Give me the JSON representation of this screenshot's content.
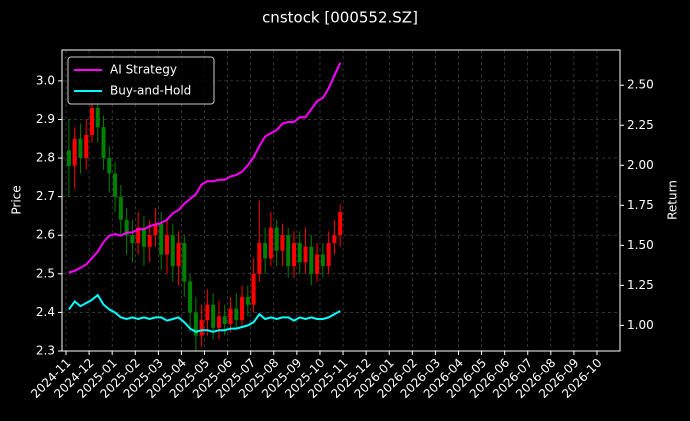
{
  "chart_data": {
    "type": "candlestick",
    "title": "cnstock [000552.SZ]",
    "ylabel": "Price",
    "y2label": "Return",
    "x": [
      "2024-11",
      "2024-11",
      "2024-11",
      "2024-11",
      "2024-12",
      "2024-12",
      "2024-12",
      "2024-12",
      "2025-01",
      "2025-01",
      "2025-01",
      "2025-01",
      "2025-02",
      "2025-02",
      "2025-02",
      "2025-02",
      "2025-03",
      "2025-03",
      "2025-03",
      "2025-03",
      "2025-04",
      "2025-04",
      "2025-04",
      "2025-04",
      "2025-05",
      "2025-05",
      "2025-05",
      "2025-05",
      "2025-06",
      "2025-06",
      "2025-06",
      "2025-06",
      "2025-07",
      "2025-07",
      "2025-07",
      "2025-07",
      "2025-08",
      "2025-08",
      "2025-08",
      "2025-08",
      "2025-09",
      "2025-09",
      "2025-09",
      "2025-09",
      "2025-10",
      "2025-10",
      "2025-10",
      "2025-10"
    ],
    "open": [
      2.82,
      2.78,
      2.85,
      2.8,
      2.86,
      2.93,
      2.88,
      2.8,
      2.76,
      2.7,
      2.64,
      2.6,
      2.58,
      2.62,
      2.57,
      2.6,
      2.63,
      2.55,
      2.6,
      2.52,
      2.58,
      2.48,
      2.4,
      2.34,
      2.38,
      2.42,
      2.36,
      2.39,
      2.37,
      2.41,
      2.38,
      2.44,
      2.42,
      2.5,
      2.58,
      2.54,
      2.62,
      2.56,
      2.6,
      2.52,
      2.58,
      2.53,
      2.57,
      2.5,
      2.55,
      2.52,
      2.58,
      2.6
    ],
    "high": [
      2.9,
      2.88,
      2.89,
      2.9,
      2.98,
      2.96,
      2.91,
      2.83,
      2.79,
      2.73,
      2.67,
      2.64,
      2.66,
      2.65,
      2.64,
      2.67,
      2.66,
      2.64,
      2.63,
      2.61,
      2.6,
      2.5,
      2.44,
      2.42,
      2.46,
      2.45,
      2.43,
      2.42,
      2.44,
      2.45,
      2.47,
      2.47,
      2.54,
      2.69,
      2.62,
      2.66,
      2.64,
      2.63,
      2.62,
      2.61,
      2.61,
      2.62,
      2.6,
      2.58,
      2.58,
      2.61,
      2.64,
      2.68
    ],
    "low": [
      2.7,
      2.72,
      2.76,
      2.77,
      2.84,
      2.84,
      2.77,
      2.71,
      2.66,
      2.6,
      2.55,
      2.53,
      2.55,
      2.52,
      2.53,
      2.57,
      2.51,
      2.5,
      2.48,
      2.47,
      2.44,
      2.35,
      2.3,
      2.31,
      2.34,
      2.33,
      2.33,
      2.34,
      2.35,
      2.36,
      2.36,
      2.39,
      2.4,
      2.48,
      2.5,
      2.52,
      2.52,
      2.52,
      2.49,
      2.49,
      2.5,
      2.5,
      2.47,
      2.48,
      2.49,
      2.5,
      2.55,
      2.57
    ],
    "close": [
      2.78,
      2.85,
      2.8,
      2.86,
      2.93,
      2.88,
      2.8,
      2.76,
      2.7,
      2.64,
      2.6,
      2.58,
      2.62,
      2.57,
      2.6,
      2.63,
      2.55,
      2.6,
      2.52,
      2.58,
      2.48,
      2.4,
      2.34,
      2.38,
      2.42,
      2.36,
      2.39,
      2.37,
      2.41,
      2.38,
      2.44,
      2.42,
      2.5,
      2.58,
      2.54,
      2.62,
      2.56,
      2.6,
      2.52,
      2.58,
      2.53,
      2.57,
      2.5,
      2.55,
      2.52,
      2.58,
      2.6,
      2.66
    ],
    "up_color": "#ff0000",
    "down_color": "#008000",
    "series": [
      {
        "name": "AI Strategy",
        "color": "#ff00ff",
        "axis": "y2",
        "values": [
          1.33,
          1.34,
          1.36,
          1.38,
          1.42,
          1.46,
          1.52,
          1.56,
          1.57,
          1.56,
          1.58,
          1.58,
          1.6,
          1.6,
          1.62,
          1.63,
          1.64,
          1.66,
          1.7,
          1.72,
          1.76,
          1.79,
          1.82,
          1.88,
          1.9,
          1.9,
          1.91,
          1.91,
          1.93,
          1.94,
          1.96,
          2.0,
          2.05,
          2.12,
          2.18,
          2.2,
          2.22,
          2.26,
          2.27,
          2.27,
          2.3,
          2.3,
          2.35,
          2.4,
          2.42,
          2.48,
          2.56,
          2.64
        ]
      },
      {
        "name": "Buy-and-Hold",
        "color": "#00ffff",
        "axis": "y2",
        "values": [
          1.1,
          1.15,
          1.12,
          1.14,
          1.16,
          1.19,
          1.13,
          1.1,
          1.08,
          1.05,
          1.04,
          1.05,
          1.04,
          1.05,
          1.04,
          1.05,
          1.05,
          1.03,
          1.04,
          1.05,
          1.02,
          0.98,
          0.96,
          0.97,
          0.97,
          0.96,
          0.97,
          0.97,
          0.98,
          0.98,
          0.99,
          1.0,
          1.02,
          1.07,
          1.04,
          1.05,
          1.04,
          1.05,
          1.05,
          1.03,
          1.05,
          1.04,
          1.05,
          1.04,
          1.04,
          1.05,
          1.07,
          1.09
        ]
      }
    ],
    "xticks": [
      "2024-11",
      "2024-12",
      "2025-01",
      "2025-02",
      "2025-03",
      "2025-04",
      "2025-05",
      "2025-06",
      "2025-07",
      "2025-08",
      "2025-09",
      "2025-10",
      "2025-11",
      "2025-12",
      "2026-01",
      "2026-02",
      "2026-03",
      "2026-04",
      "2026-05",
      "2026-06",
      "2026-07",
      "2026-08",
      "2026-09",
      "2026-10"
    ],
    "ylim": [
      2.3,
      3.08
    ],
    "yticks": [
      2.3,
      2.4,
      2.5,
      2.6,
      2.7,
      2.8,
      2.9,
      {
        "value": 3,
        "label": "3.0"
      }
    ],
    "y2lim": [
      0.84,
      2.72
    ],
    "y2ticks": [
      {
        "value": 1,
        "label": "1.00"
      },
      1.25,
      {
        "value": 1.5,
        "label": "1.50"
      },
      1.75,
      {
        "value": 2,
        "label": "2.00"
      },
      2.25,
      {
        "value": 2.5,
        "label": "2.50"
      }
    ],
    "grid": true,
    "legend": "upper left"
  }
}
